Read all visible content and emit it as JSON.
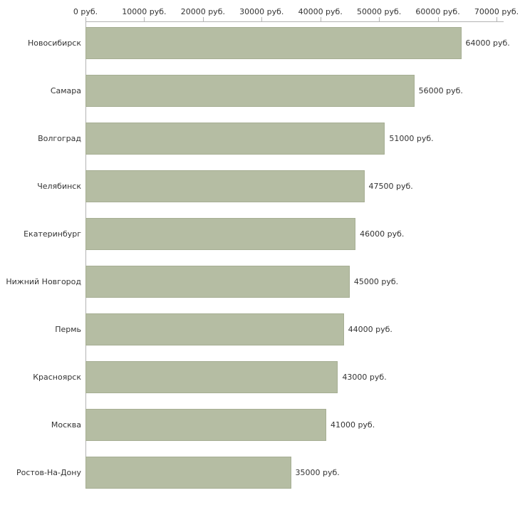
{
  "chart_data": {
    "type": "bar",
    "orientation": "horizontal",
    "title": "",
    "xlabel": "",
    "ylabel": "",
    "xlim": [
      0,
      70000
    ],
    "grid": false,
    "legend": false,
    "bar_color": "#b5bda3",
    "bar_border_color": "#a6ae93",
    "axis_color": "#b3b3b3",
    "text_color": "#333333",
    "categories": [
      "Новосибирск",
      "Самара",
      "Волгоград",
      "Челябинск",
      "Екатеринбург",
      "Нижний Новгород",
      "Пермь",
      "Красноярск",
      "Москва",
      "Ростов-На-Дону"
    ],
    "values": [
      64000,
      56000,
      51000,
      47500,
      46000,
      45000,
      44000,
      43000,
      41000,
      35000
    ],
    "value_labels": [
      "64000 руб.",
      "56000 руб.",
      "51000 руб.",
      "47500 руб.",
      "46000 руб.",
      "45000 руб.",
      "44000 руб.",
      "43000 руб.",
      "41000 руб.",
      "35000 руб."
    ],
    "x_ticks": [
      {
        "value": 0,
        "label": "0 руб."
      },
      {
        "value": 10000,
        "label": "10000 руб."
      },
      {
        "value": 20000,
        "label": "20000 руб."
      },
      {
        "value": 30000,
        "label": "30000 руб."
      },
      {
        "value": 40000,
        "label": "40000 руб."
      },
      {
        "value": 50000,
        "label": "50000 руб."
      },
      {
        "value": 60000,
        "label": "60000 руб."
      },
      {
        "value": 70000,
        "label": "70000 руб."
      }
    ]
  }
}
